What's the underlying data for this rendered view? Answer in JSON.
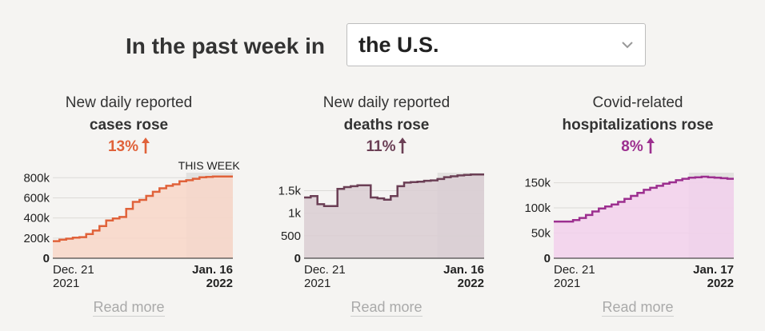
{
  "header": {
    "title": "In the past week in",
    "location": "the U.S."
  },
  "panels": [
    {
      "line1": "New daily reported",
      "line2": "cases rose",
      "change": "13%",
      "color": "#e0623a",
      "fill": "#f8d6c8",
      "this_week_label": "THIS WEEK",
      "read_more": "Read more",
      "start_date": "Dec. 21",
      "start_year": "2021",
      "end_date": "Jan. 16",
      "end_year": "2022",
      "y_ticks": [
        "0",
        "200k",
        "400k",
        "600k",
        "800k"
      ],
      "chart_data": {
        "type": "area",
        "ylim": [
          0,
          850000
        ],
        "yticks": [
          0,
          200000,
          400000,
          600000,
          800000
        ],
        "x": [
          "Dec. 21",
          "Dec. 22",
          "Dec. 23",
          "Dec. 24",
          "Dec. 25",
          "Dec. 26",
          "Dec. 27",
          "Dec. 28",
          "Dec. 29",
          "Dec. 30",
          "Dec. 31",
          "Jan. 1",
          "Jan. 2",
          "Jan. 3",
          "Jan. 4",
          "Jan. 5",
          "Jan. 6",
          "Jan. 7",
          "Jan. 8",
          "Jan. 9",
          "Jan. 10",
          "Jan. 11",
          "Jan. 12",
          "Jan. 13",
          "Jan. 14",
          "Jan. 15",
          "Jan. 16"
        ],
        "values": [
          170000,
          185000,
          195000,
          205000,
          210000,
          240000,
          275000,
          320000,
          375000,
          395000,
          410000,
          490000,
          560000,
          580000,
          620000,
          660000,
          695000,
          720000,
          735000,
          765000,
          775000,
          790000,
          805000,
          808000,
          812000,
          813000,
          813000
        ],
        "highlight_last": 7
      }
    },
    {
      "line1": "New daily reported",
      "line2": "deaths rose",
      "change": "11%",
      "color": "#6b3f55",
      "fill": "#d9ccd2",
      "read_more": "Read more",
      "start_date": "Dec. 21",
      "start_year": "2021",
      "end_date": "Jan. 16",
      "end_year": "2022",
      "y_ticks": [
        "0",
        "500",
        "1k",
        "1.5k"
      ],
      "chart_data": {
        "type": "area",
        "ylim": [
          0,
          1900
        ],
        "yticks": [
          0,
          500,
          1000,
          1500
        ],
        "x": [
          "Dec. 21",
          "Dec. 22",
          "Dec. 23",
          "Dec. 24",
          "Dec. 25",
          "Dec. 26",
          "Dec. 27",
          "Dec. 28",
          "Dec. 29",
          "Dec. 30",
          "Dec. 31",
          "Jan. 1",
          "Jan. 2",
          "Jan. 3",
          "Jan. 4",
          "Jan. 5",
          "Jan. 6",
          "Jan. 7",
          "Jan. 8",
          "Jan. 9",
          "Jan. 10",
          "Jan. 11",
          "Jan. 12",
          "Jan. 13",
          "Jan. 14",
          "Jan. 15",
          "Jan. 16"
        ],
        "values": [
          1350,
          1380,
          1200,
          1160,
          1160,
          1540,
          1580,
          1600,
          1620,
          1620,
          1350,
          1330,
          1300,
          1380,
          1600,
          1680,
          1690,
          1700,
          1720,
          1730,
          1760,
          1800,
          1820,
          1840,
          1850,
          1860,
          1860
        ],
        "highlight_last": 7
      }
    },
    {
      "line1": "Covid-related",
      "line2": "hospitalizations rose",
      "change": "8%",
      "color": "#9c2f8f",
      "fill": "#f2d0ec",
      "read_more": "Read more",
      "start_date": "Dec. 21",
      "start_year": "2021",
      "end_date": "Jan. 17",
      "end_year": "2022",
      "y_ticks": [
        "0",
        "50k",
        "100k",
        "150k"
      ],
      "chart_data": {
        "type": "area",
        "ylim": [
          0,
          170000
        ],
        "yticks": [
          0,
          50000,
          100000,
          150000
        ],
        "x": [
          "Dec. 21",
          "Dec. 22",
          "Dec. 23",
          "Dec. 24",
          "Dec. 25",
          "Dec. 26",
          "Dec. 27",
          "Dec. 28",
          "Dec. 29",
          "Dec. 30",
          "Dec. 31",
          "Jan. 1",
          "Jan. 2",
          "Jan. 3",
          "Jan. 4",
          "Jan. 5",
          "Jan. 6",
          "Jan. 7",
          "Jan. 8",
          "Jan. 9",
          "Jan. 10",
          "Jan. 11",
          "Jan. 12",
          "Jan. 13",
          "Jan. 14",
          "Jan. 15",
          "Jan. 16",
          "Jan. 17"
        ],
        "values": [
          73000,
          73000,
          73000,
          76000,
          80000,
          86000,
          93000,
          99000,
          103000,
          107000,
          112000,
          118000,
          124000,
          130000,
          136000,
          140000,
          144000,
          148000,
          151000,
          155000,
          158000,
          160000,
          161000,
          162000,
          161000,
          160000,
          159000,
          158000
        ],
        "highlight_last": 7
      }
    }
  ]
}
